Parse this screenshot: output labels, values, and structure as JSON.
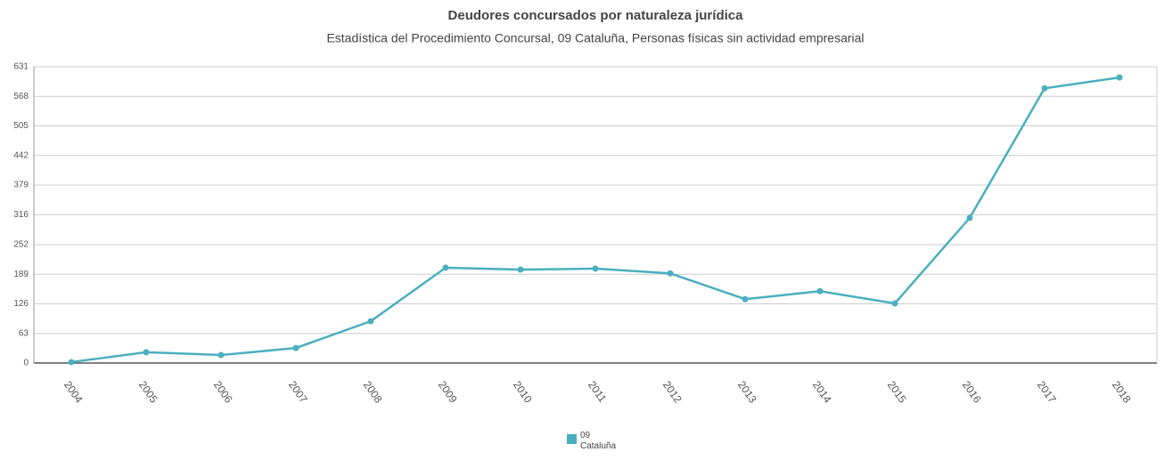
{
  "chart_data": {
    "type": "line",
    "title": "Deudores concursados por naturaleza jurídica",
    "subtitle": "Estadística del Procedimiento Concursal, 09 Cataluña, Personas físicas sin actividad empresarial",
    "categories": [
      "2004",
      "2005",
      "2006",
      "2007",
      "2008",
      "2009",
      "2010",
      "2011",
      "2012",
      "2013",
      "2014",
      "2015",
      "2016",
      "2017",
      "2018"
    ],
    "series": [
      {
        "name": "09 Cataluña",
        "color": "#4aafbf",
        "values": [
          2,
          23,
          17,
          32,
          89,
          203,
          199,
          201,
          191,
          136,
          153,
          127,
          309,
          585,
          608
        ]
      }
    ],
    "ylim": [
      0,
      631
    ],
    "yticks": [
      0,
      63,
      126,
      189,
      252,
      316,
      379,
      442,
      505,
      568,
      631
    ],
    "grid": true,
    "legend": "bottom"
  }
}
